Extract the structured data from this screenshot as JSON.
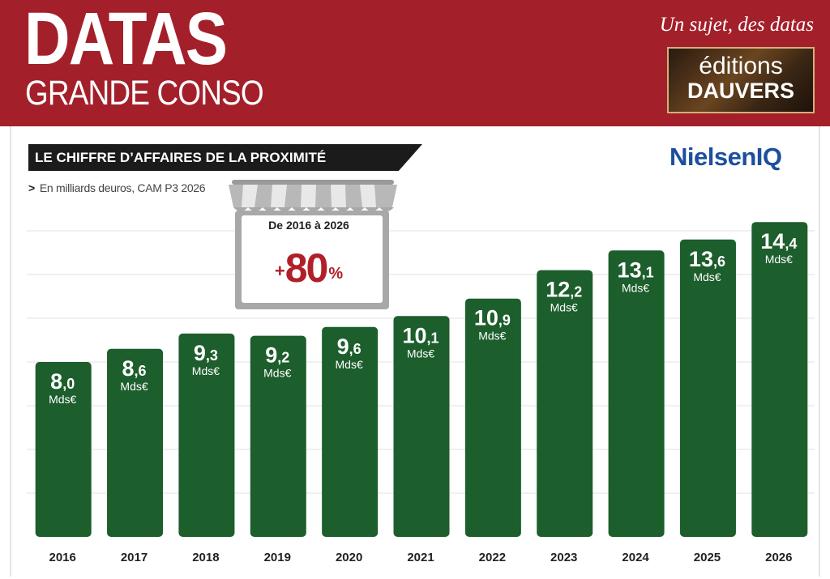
{
  "header": {
    "brand_title": "DATAS",
    "brand_subtitle": "GRANDE CONSO",
    "tagline": "Un sujet, des datas",
    "publisher_line1": "éditions",
    "publisher_line2": "DAUVERS"
  },
  "source_logo": "NielsenIQ",
  "callout": {
    "period": "De 2016 à 2026",
    "sign": "+",
    "value": "80",
    "unit": "%"
  },
  "colors": {
    "header_bg": "#a3202a",
    "bar": "#1c5e2c",
    "accent_red": "#b0202a",
    "source_logo": "#1d4f9c"
  },
  "chart_data": {
    "type": "bar",
    "title": "LE CHIFFRE D’AFFAIRES DE LA PROXIMITÉ",
    "subtitle_marker": ">",
    "subtitle": "En milliards deuros, CAM P3 2026",
    "categories": [
      "2016",
      "2017",
      "2018",
      "2019",
      "2020",
      "2021",
      "2022",
      "2023",
      "2024",
      "2025",
      "2026"
    ],
    "values": [
      8.0,
      8.6,
      9.3,
      9.2,
      9.6,
      10.1,
      10.9,
      12.2,
      13.1,
      13.6,
      14.4
    ],
    "value_labels_int": [
      "8",
      "8",
      "9",
      "9",
      "9",
      "10",
      "10",
      "12",
      "13",
      "13",
      "14"
    ],
    "value_labels_dec": [
      ",0",
      ",6",
      ",3",
      ",2",
      ",6",
      ",1",
      ",9",
      ",2",
      ",1",
      ",6",
      ",4"
    ],
    "unit_label": "Mds€",
    "xlabel": "",
    "ylabel": "",
    "ylim": [
      0,
      15
    ],
    "grid": true,
    "legend": "none"
  }
}
